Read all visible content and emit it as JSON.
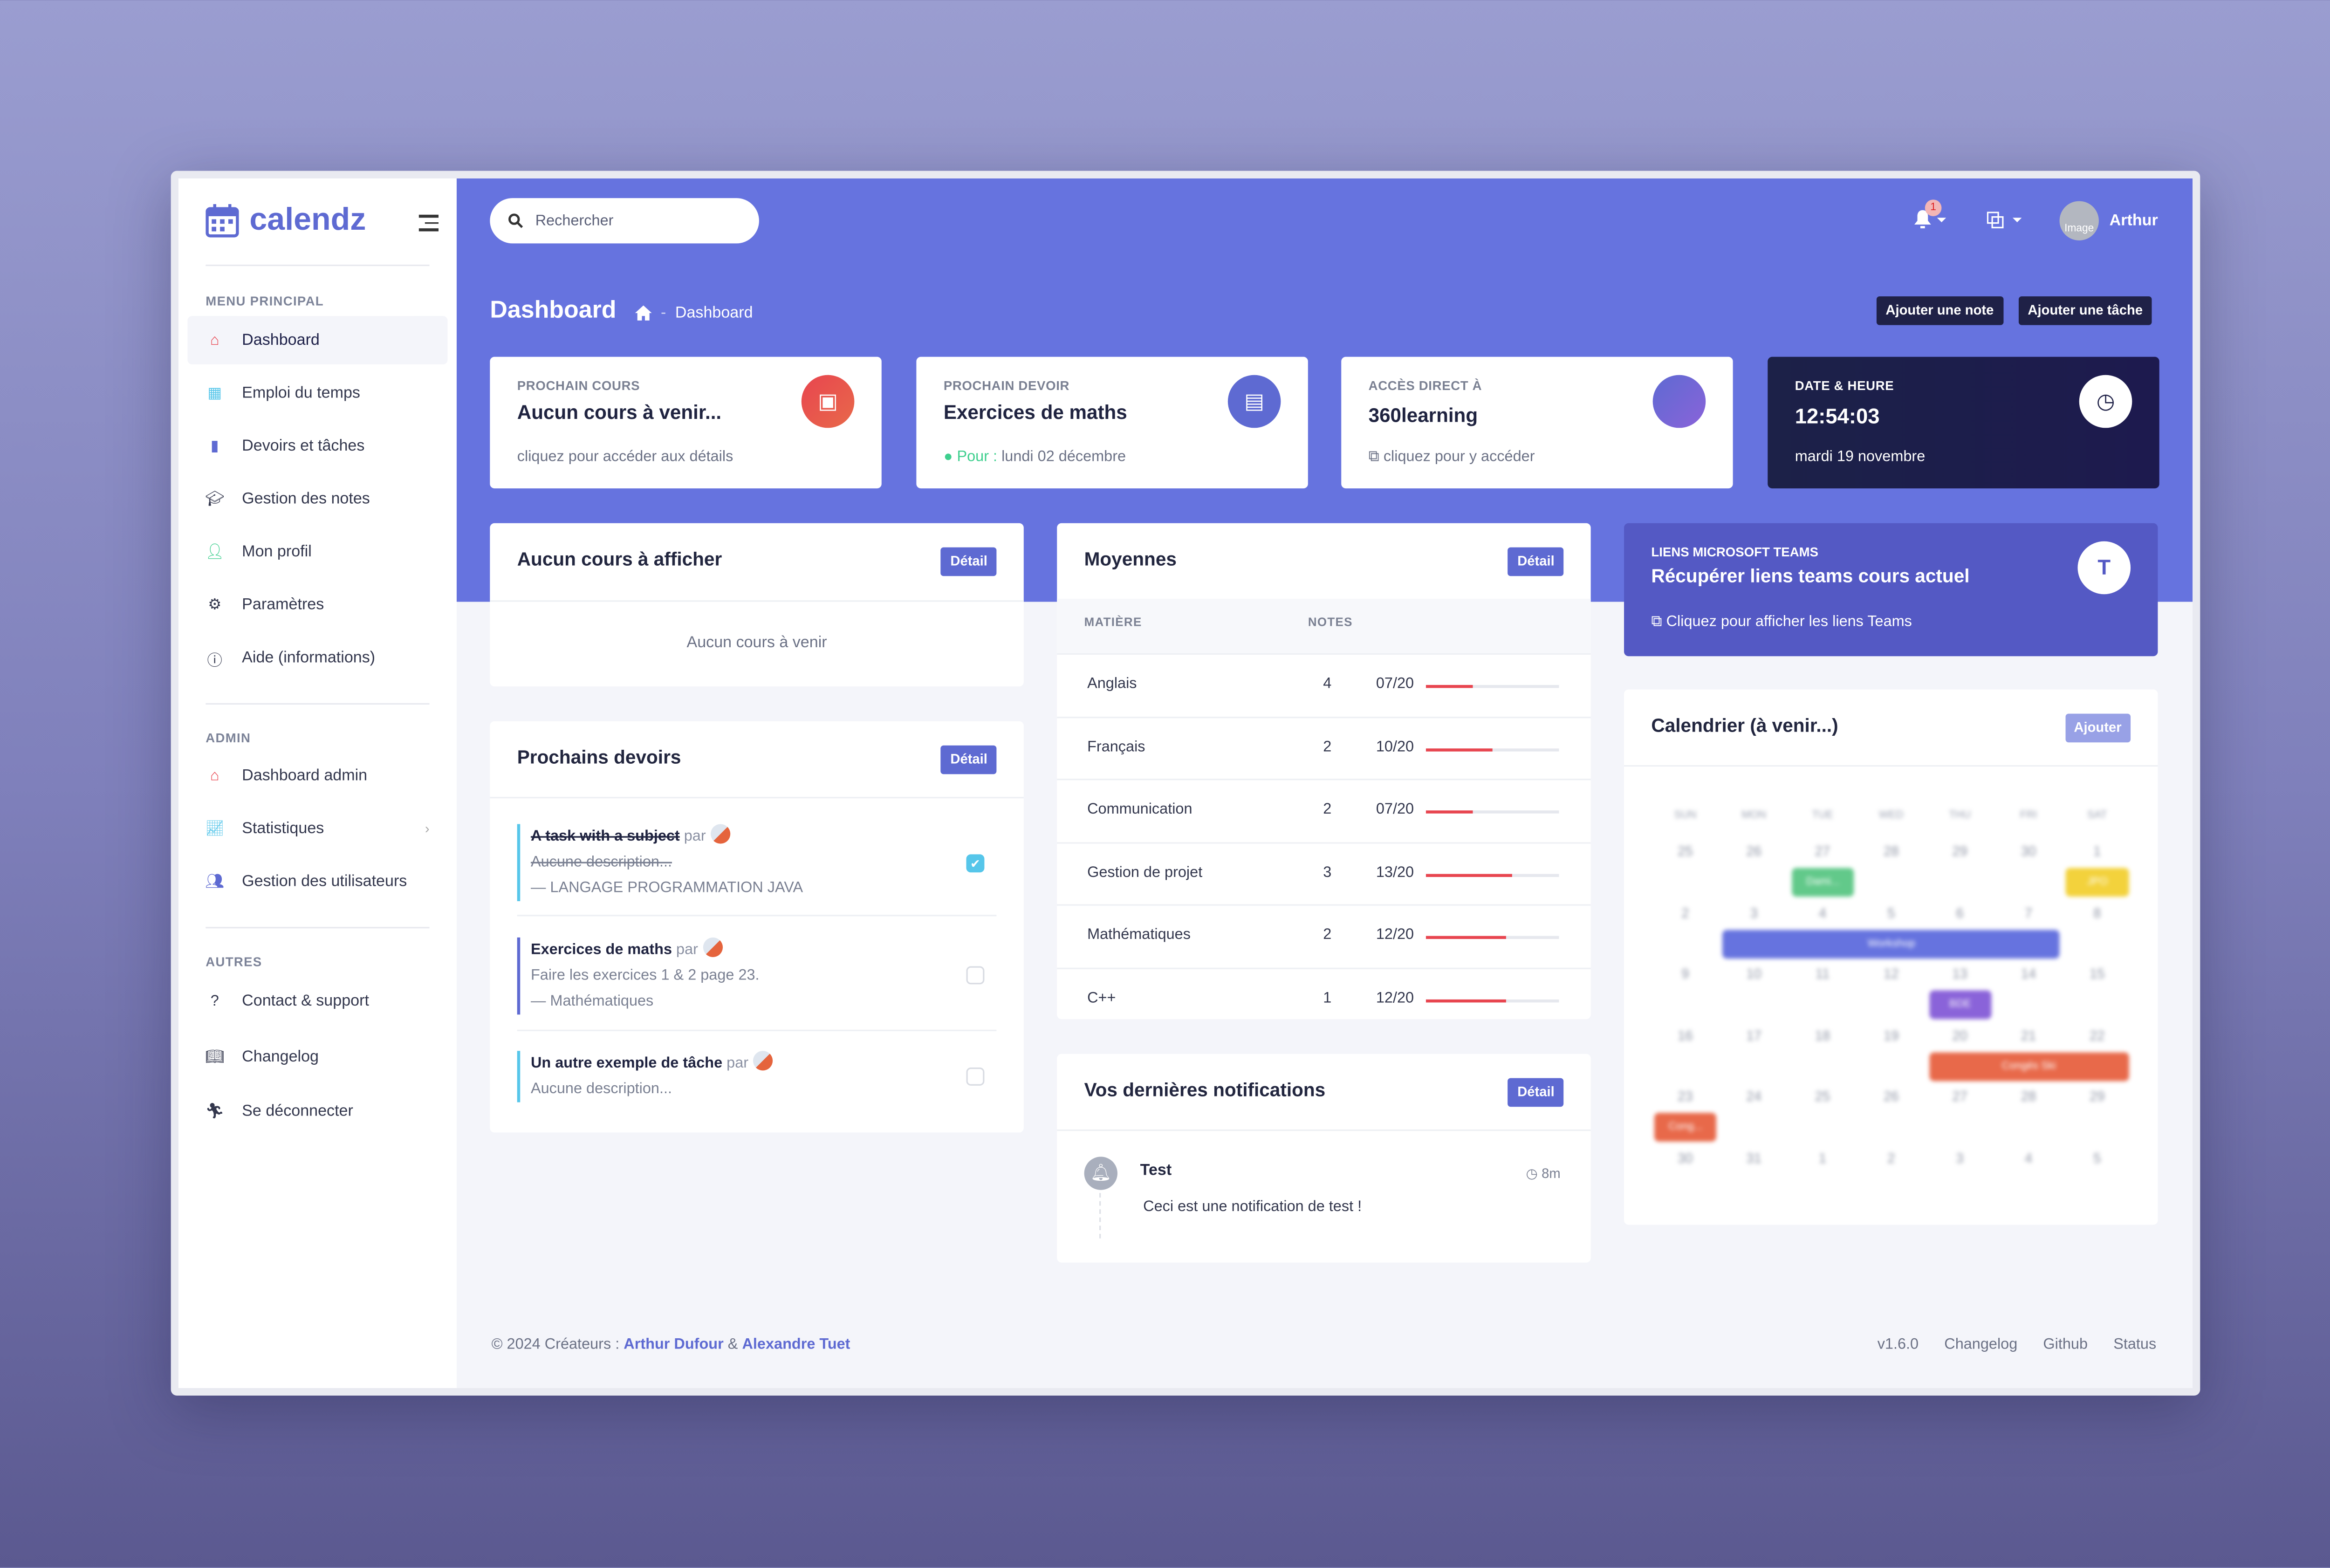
{
  "app": {
    "name": "calendz"
  },
  "colors": {
    "accent": "#6673df",
    "dark": "#1f2147",
    "teams": "#5459c4",
    "grade_bar": "#e8454f",
    "task_blue": "#56c6ea",
    "task_indigo": "#5e6ad2"
  },
  "sidebar": {
    "sections": [
      {
        "title": "MENU PRINCIPAL",
        "items": [
          {
            "label": "Dashboard",
            "icon": "store-icon",
            "active": true
          },
          {
            "label": "Emploi du temps",
            "icon": "calendar-icon"
          },
          {
            "label": "Devoirs et tâches",
            "icon": "book-icon"
          },
          {
            "label": "Gestion des notes",
            "icon": "graduation-cap-icon"
          },
          {
            "label": "Mon profil",
            "icon": "user-edit-icon"
          },
          {
            "label": "Paramètres",
            "icon": "cogs-icon"
          },
          {
            "label": "Aide (informations)",
            "icon": "info-circle-icon"
          }
        ]
      },
      {
        "title": "ADMIN",
        "items": [
          {
            "label": "Dashboard admin",
            "icon": "store-icon"
          },
          {
            "label": "Statistiques",
            "icon": "chart-line-icon",
            "has_submenu": true
          },
          {
            "label": "Gestion des utilisateurs",
            "icon": "users-icon"
          }
        ]
      },
      {
        "title": "AUTRES",
        "items": [
          {
            "label": "Contact & support",
            "icon": "question-circle-icon"
          },
          {
            "label": "Changelog",
            "icon": "book-open-icon"
          },
          {
            "label": "Se déconnecter",
            "icon": "running-icon"
          }
        ]
      }
    ]
  },
  "topbar": {
    "search_placeholder": "Rechercher",
    "notification_count": "1",
    "user": {
      "name": "Arthur",
      "avatar_alt": "Image"
    }
  },
  "header": {
    "title": "Dashboard",
    "breadcrumb": "Dashboard",
    "buttons": {
      "add_note": "Ajouter une note",
      "add_task": "Ajouter une tâche"
    }
  },
  "stats": [
    {
      "label": "PROCHAIN COURS",
      "value": "Aucun cours à venir...",
      "sub": "cliquez pour accéder aux détails",
      "icon": "calendar-icon",
      "color": "#e64e4e"
    },
    {
      "label": "PROCHAIN DEVOIR",
      "value": "Exercices de maths",
      "sub_prefix": "Pour :",
      "sub": "lundi 02 décembre",
      "icon": "book-icon",
      "color": "#5e6ad2"
    },
    {
      "label": "ACCÈS DIRECT À",
      "value": "360learning",
      "sub": "cliquez pour y accéder",
      "icon": "external-link-icon",
      "color": "#6a5fdc"
    },
    {
      "label": "DATE & HEURE",
      "value": "12:54:03",
      "sub": "mardi 19 novembre",
      "icon": "clock-icon"
    }
  ],
  "courses": {
    "title": "Aucun cours à afficher",
    "detail": "Détail",
    "empty": "Aucun cours à venir"
  },
  "tasks": {
    "title": "Prochains devoirs",
    "detail": "Détail",
    "by": "par",
    "items": [
      {
        "title": "A task with a subject",
        "description": "Aucune description...",
        "subject": "LANGAGE PROGRAMMATION JAVA",
        "done": true
      },
      {
        "title": "Exercices de maths",
        "description": "Faire les exercices 1 & 2 page 23.",
        "subject": "Mathématiques",
        "done": false
      },
      {
        "title": "Un autre exemple de tâche",
        "description": "Aucune description...",
        "done": false
      }
    ]
  },
  "averages": {
    "title": "Moyennes",
    "detail": "Détail",
    "col_subject": "MATIÈRE",
    "col_grades": "NOTES",
    "rows": [
      {
        "subject": "Anglais",
        "count": "4",
        "grade": "07/20",
        "value": 7
      },
      {
        "subject": "Français",
        "count": "2",
        "grade": "10/20",
        "value": 10
      },
      {
        "subject": "Communication",
        "count": "2",
        "grade": "07/20",
        "value": 7
      },
      {
        "subject": "Gestion de projet",
        "count": "3",
        "grade": "13/20",
        "value": 13
      },
      {
        "subject": "Mathématiques",
        "count": "2",
        "grade": "12/20",
        "value": 12
      },
      {
        "subject": "C++",
        "count": "1",
        "grade": "12/20",
        "value": 12
      }
    ]
  },
  "notifications": {
    "title": "Vos dernières notifications",
    "detail": "Détail",
    "items": [
      {
        "title": "Test",
        "time": "8m",
        "body": "Ceci est une notification de test !"
      }
    ]
  },
  "teams": {
    "label": "LIENS MICROSOFT TEAMS",
    "title": "Récupérer liens teams cours actuel",
    "link": "Cliquez pour afficher les liens Teams"
  },
  "calendar": {
    "title": "Calendrier (à venir...)",
    "add": "Ajouter",
    "weekdays": [
      "SUN",
      "MON",
      "TUE",
      "WED",
      "THU",
      "FRI",
      "SAT"
    ],
    "weeks": [
      [
        "25",
        "26",
        "27",
        "28",
        "29",
        "30",
        "1"
      ],
      [
        "2",
        "3",
        "4",
        "5",
        "6",
        "7",
        "8"
      ],
      [
        "9",
        "10",
        "11",
        "12",
        "13",
        "14",
        "15"
      ],
      [
        "16",
        "17",
        "18",
        "19",
        "20",
        "21",
        "22"
      ],
      [
        "23",
        "24",
        "25",
        "26",
        "27",
        "28",
        "29"
      ],
      [
        "30",
        "31",
        "1",
        "2",
        "3",
        "4",
        "5"
      ]
    ],
    "events": [
      {
        "label": "Dami...",
        "week": 0,
        "start": 2,
        "span": 1,
        "color": "#62c98a"
      },
      {
        "label": "JPO",
        "week": 0,
        "start": 6,
        "span": 1,
        "color": "#f3d23c"
      },
      {
        "label": "Workshop",
        "week": 1,
        "start": 1,
        "span": 5,
        "color": "#6673df"
      },
      {
        "label": "BDE",
        "week": 2,
        "start": 4,
        "span": 1,
        "color": "#8a63d9"
      },
      {
        "label": "Congés Ski",
        "week": 3,
        "start": 4,
        "span": 3,
        "color": "#e8694a"
      },
      {
        "label": "Cong...",
        "week": 4,
        "start": 0,
        "span": 1,
        "color": "#e8694a"
      }
    ]
  },
  "footer": {
    "copyright": "© 2024 Créateurs :",
    "author1": "Arthur Dufour",
    "and": "&",
    "author2": "Alexandre Tuet",
    "version": "v1.6.0",
    "links": [
      "Changelog",
      "Github",
      "Status"
    ]
  }
}
